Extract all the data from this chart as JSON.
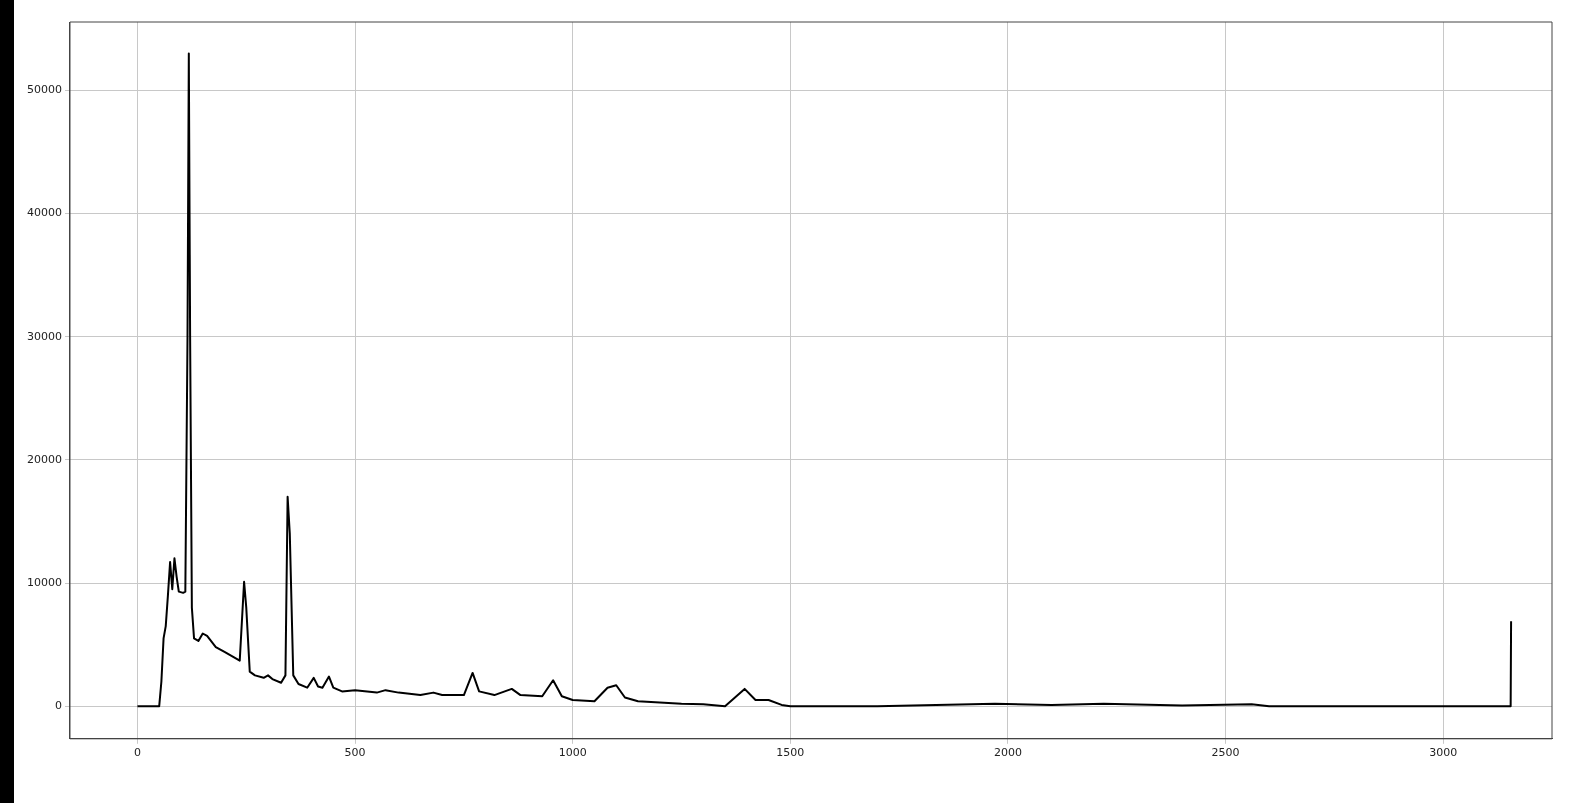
{
  "chart_data": {
    "type": "line",
    "x": [
      0,
      50,
      55,
      60,
      65,
      70,
      75,
      80,
      85,
      90,
      95,
      105,
      110,
      115,
      118,
      121,
      125,
      130,
      140,
      150,
      160,
      180,
      200,
      220,
      235,
      245,
      250,
      258,
      270,
      290,
      300,
      310,
      330,
      340,
      345,
      350,
      358,
      370,
      390,
      405,
      415,
      425,
      440,
      450,
      470,
      500,
      550,
      570,
      600,
      650,
      680,
      700,
      750,
      770,
      785,
      820,
      860,
      880,
      930,
      955,
      975,
      1000,
      1050,
      1080,
      1100,
      1120,
      1150,
      1200,
      1250,
      1300,
      1350,
      1395,
      1420,
      1450,
      1480,
      1500,
      1700,
      1970,
      2100,
      2220,
      2400,
      2560,
      2600,
      3155,
      3156
    ],
    "series": [
      {
        "color": "#000000",
        "values": [
          0,
          0,
          2000,
          5500,
          6500,
          9000,
          11700,
          9500,
          12000,
          10500,
          9300,
          9200,
          9300,
          30000,
          53000,
          30000,
          8000,
          5500,
          5300,
          5900,
          5700,
          4800,
          4400,
          4000,
          3700,
          10100,
          8000,
          2800,
          2500,
          2300,
          2500,
          2200,
          1900,
          2500,
          17000,
          14000,
          2500,
          1800,
          1500,
          2300,
          1600,
          1500,
          2400,
          1500,
          1200,
          1300,
          1100,
          1300,
          1100,
          900,
          1100,
          900,
          900,
          2700,
          1200,
          900,
          1400,
          900,
          800,
          2100,
          800,
          500,
          400,
          1500,
          1700,
          700,
          400,
          300,
          200,
          150,
          0,
          1400,
          500,
          500,
          100,
          0,
          0,
          200,
          100,
          200,
          50,
          150,
          0,
          0,
          6900
        ]
      }
    ],
    "xlim": [
      -155,
      3250
    ],
    "xticks": [
      0,
      500,
      1000,
      1500,
      2000,
      2500,
      3000
    ],
    "ylim": [
      -2650,
      55550
    ],
    "yticks": [
      0,
      10000,
      20000,
      30000,
      40000,
      50000
    ],
    "grid": true,
    "legend": false,
    "marker": "none",
    "line_style": "solid"
  }
}
